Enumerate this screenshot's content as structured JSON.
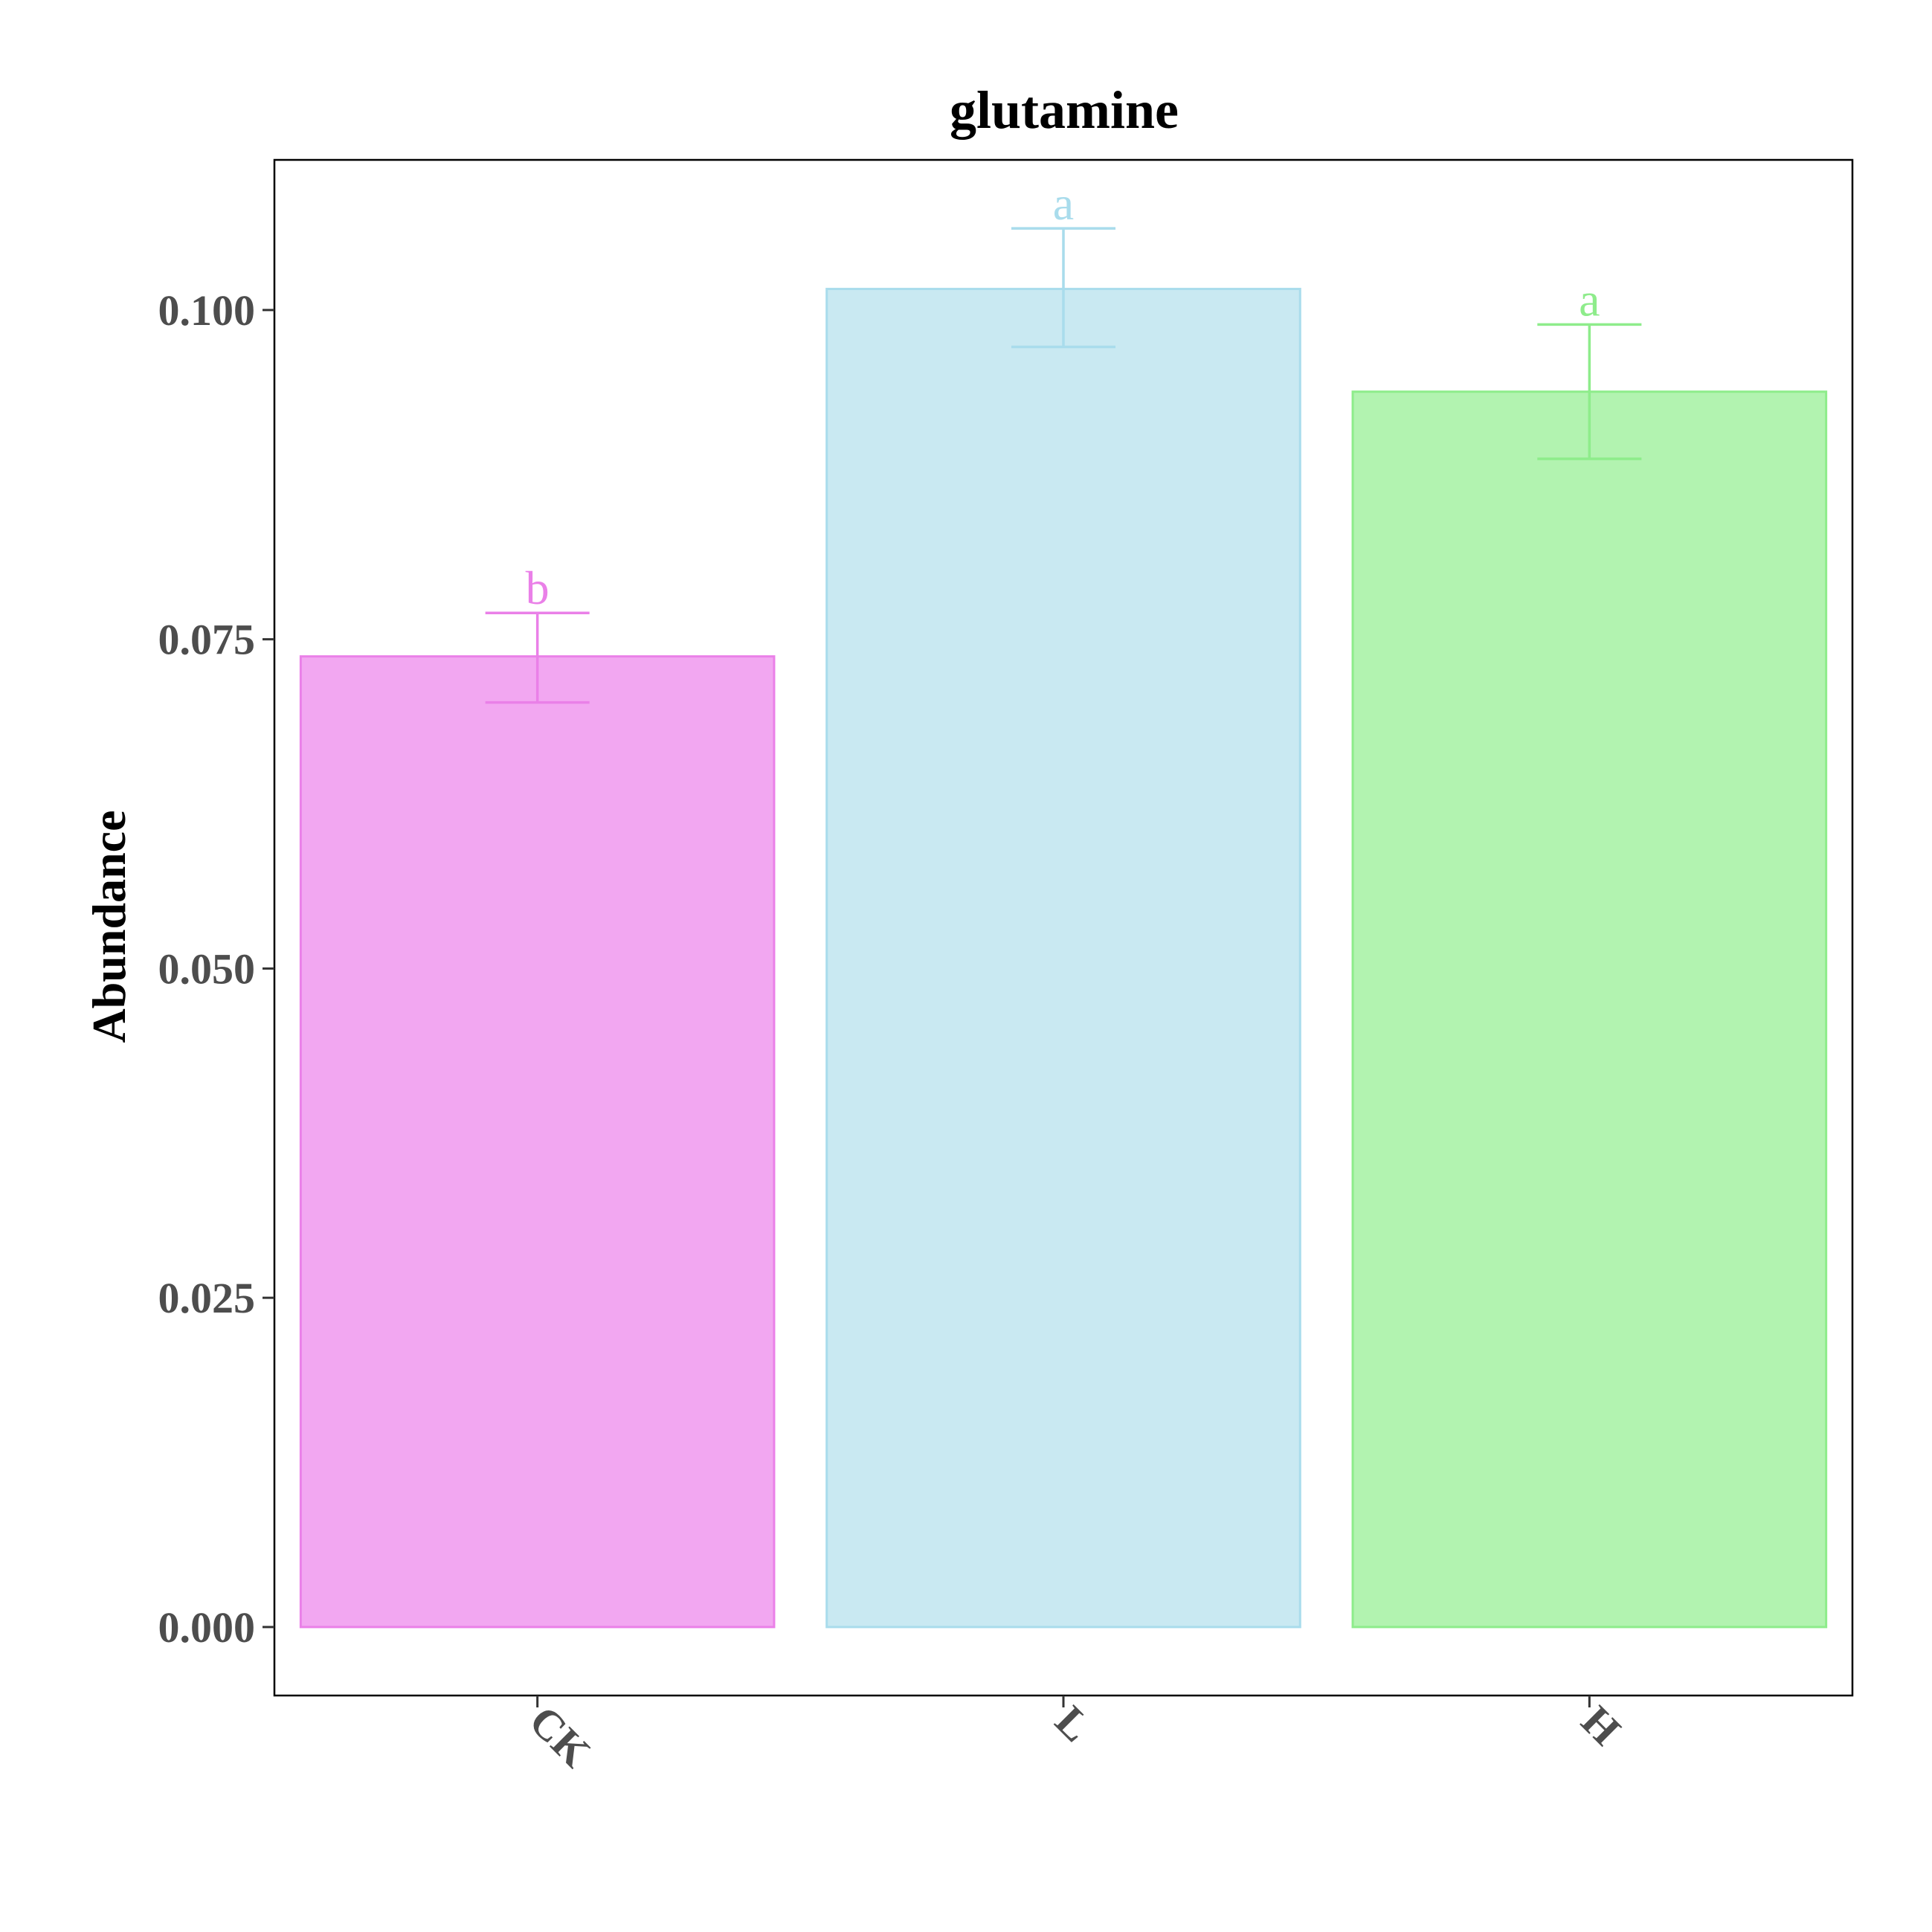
{
  "chart_data": {
    "type": "bar",
    "title": "glutamine",
    "xlabel": "",
    "ylabel": "Abundance",
    "categories": [
      "CK",
      "L",
      "H"
    ],
    "values": [
      0.0737,
      0.1016,
      0.0938
    ],
    "error_upper": [
      0.077,
      0.1062,
      0.0989
    ],
    "error_lower": [
      0.0702,
      0.0972,
      0.0887
    ],
    "significance_letters": [
      "b",
      "a",
      "a"
    ],
    "fill_colors": [
      "#f2a7f1",
      "#c9e9f2",
      "#b2f3b0"
    ],
    "stroke_colors": [
      "#ea80e8",
      "#a9dcec",
      "#8eec8b"
    ],
    "ylim": [
      -0.0052,
      0.1114
    ],
    "yticks": [
      0.0,
      0.025,
      0.05,
      0.075,
      0.1
    ],
    "ytick_labels": [
      "0.000",
      "0.025",
      "0.050",
      "0.075",
      "0.100"
    ],
    "grid": false,
    "legend": "none"
  }
}
